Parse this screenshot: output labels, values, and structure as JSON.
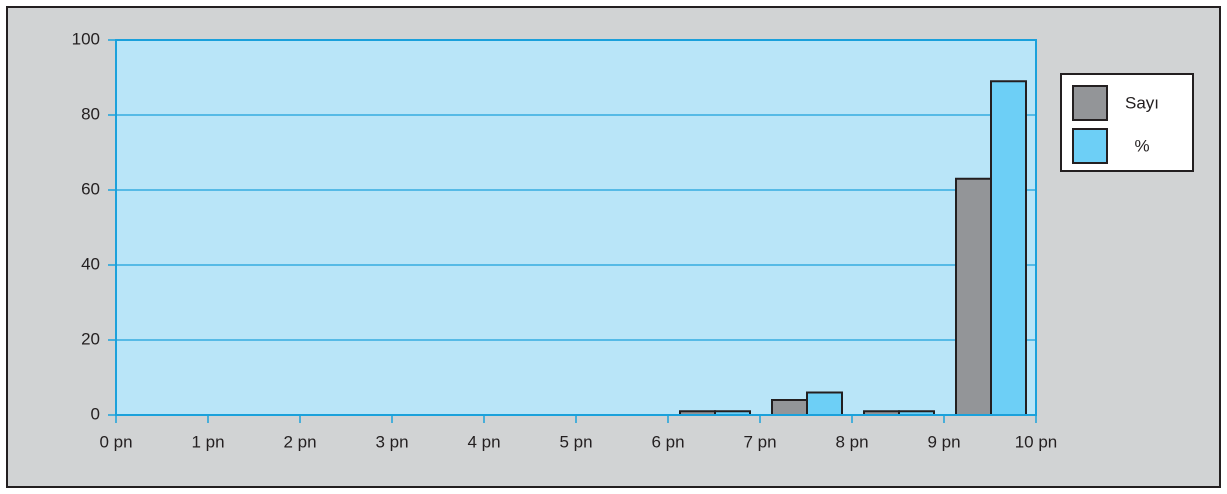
{
  "chart_data": {
    "type": "histogram",
    "bins": [
      0,
      1,
      2,
      3,
      4,
      5,
      6,
      7,
      8,
      9,
      10
    ],
    "series": [
      {
        "name": "Sayı",
        "color": "#939598",
        "values": [
          0,
          0,
          0,
          0,
          0,
          0,
          1,
          4,
          1,
          63
        ]
      },
      {
        "name": "%",
        "color": "#6dcff6",
        "values": [
          0,
          0,
          0,
          0,
          0,
          0,
          1,
          6,
          1,
          89
        ]
      }
    ],
    "xlim": [
      0,
      10
    ],
    "xticks": [
      {
        "value": 0,
        "label": "0 pn"
      },
      {
        "value": 1,
        "label": "1 pn"
      },
      {
        "value": 2,
        "label": "2 pn"
      },
      {
        "value": 3,
        "label": "3 pn"
      },
      {
        "value": 4,
        "label": "4 pn"
      },
      {
        "value": 5,
        "label": "5 pn"
      },
      {
        "value": 6,
        "label": "6 pn"
      },
      {
        "value": 7,
        "label": "7 pn"
      },
      {
        "value": 8,
        "label": "8 pn"
      },
      {
        "value": 9,
        "label": "9 pn"
      },
      {
        "value": 10,
        "label": "10 pn"
      }
    ],
    "ylim": [
      0,
      100
    ],
    "yticks": [
      0,
      20,
      40,
      60,
      80,
      100
    ],
    "grid": true,
    "legend": "right"
  }
}
